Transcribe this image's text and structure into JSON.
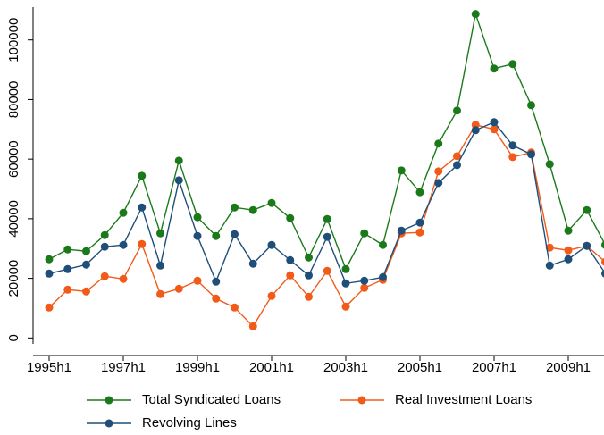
{
  "chart_data": {
    "type": "line",
    "categories": [
      "1995h1",
      null,
      null,
      null,
      "1997h1",
      null,
      null,
      null,
      "1999h1",
      null,
      null,
      null,
      "2001h1",
      null,
      null,
      null,
      "2003h1",
      null,
      null,
      null,
      "2005h1",
      null,
      null,
      null,
      "2007h1",
      null,
      null,
      null,
      "2009h1",
      null,
      null
    ],
    "series": [
      {
        "name": "Total Syndicated Loans",
        "color": "#1a7a1a",
        "values": [
          26400,
          29700,
          29100,
          34500,
          42000,
          54400,
          35100,
          59500,
          40500,
          34200,
          43800,
          42900,
          45300,
          40200,
          27000,
          39900,
          23100,
          35100,
          31200,
          56200,
          48900,
          65200,
          76300,
          108700,
          90400,
          91900,
          78100,
          58300,
          36000,
          42900,
          31200
        ]
      },
      {
        "name": "Real Investment Loans",
        "color": "#f25a1a",
        "values": [
          10200,
          16200,
          15600,
          20700,
          19800,
          31500,
          14700,
          16500,
          19200,
          13200,
          10200,
          3900,
          14100,
          21000,
          13800,
          22500,
          10500,
          16800,
          19500,
          35100,
          35400,
          55900,
          61000,
          71500,
          70000,
          60700,
          62200,
          30300,
          29400,
          30900,
          25500
        ]
      },
      {
        "name": "Revolving Lines",
        "color": "#1f4e79",
        "values": [
          21600,
          23100,
          24600,
          30600,
          31200,
          43800,
          24300,
          52900,
          34200,
          18900,
          34800,
          24900,
          31200,
          26100,
          21000,
          33900,
          18300,
          19200,
          20400,
          36000,
          38700,
          52000,
          58000,
          69700,
          72400,
          64600,
          61600,
          24300,
          26400,
          30900,
          21600
        ]
      }
    ],
    "ylim": [
      -2000,
      111000
    ],
    "yticks": [
      0,
      20000,
      40000,
      60000,
      80000,
      100000
    ],
    "grid": false
  }
}
